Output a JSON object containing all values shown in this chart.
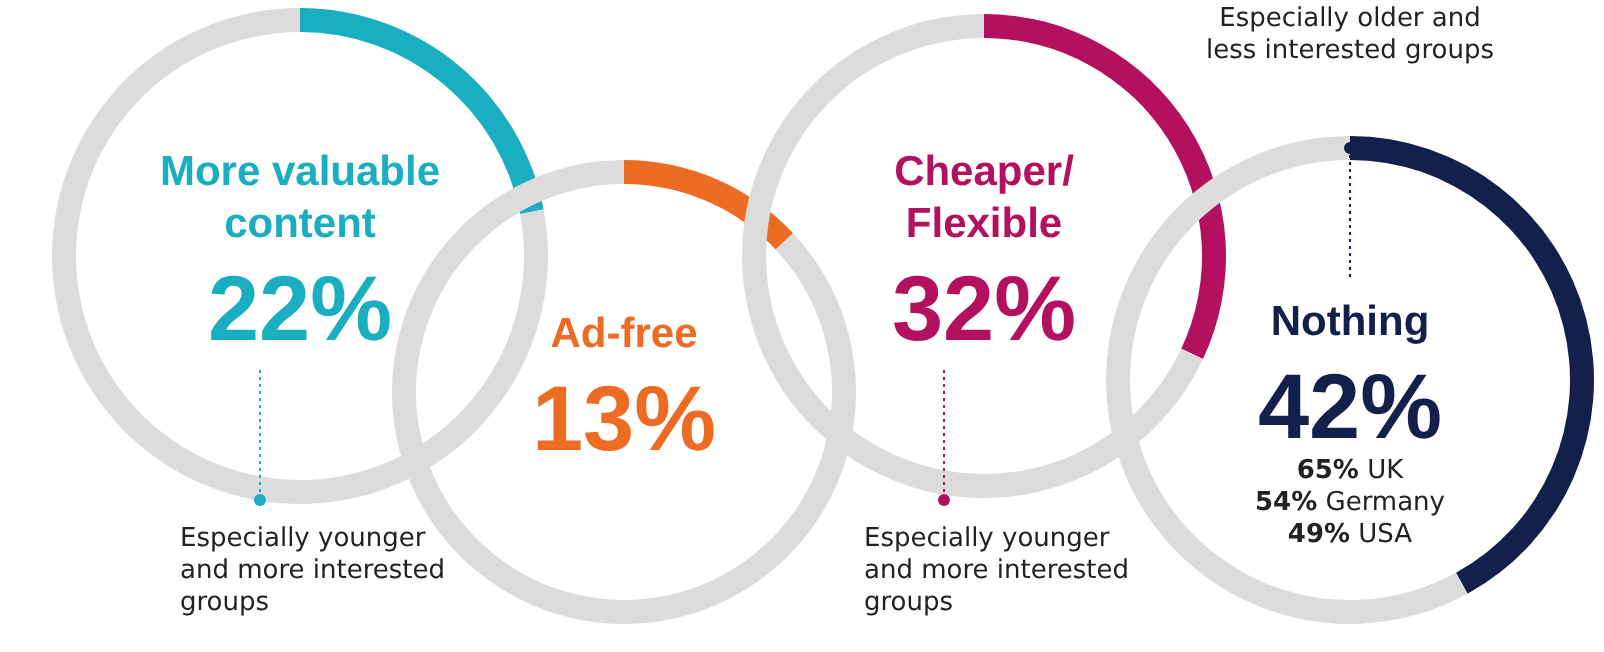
{
  "chart_data": [
    {
      "type": "donut",
      "categories": [
        "More valuable content",
        null
      ],
      "values": [
        22,
        78
      ],
      "colors": [
        "#19aec0",
        "#dcdcdc"
      ],
      "value_labels": [
        "22%",
        null
      ],
      "annotations": [
        "Especially younger and more interested groups"
      ]
    },
    {
      "type": "donut",
      "categories": [
        "Ad-free",
        null
      ],
      "values": [
        13,
        87
      ],
      "colors": [
        "#ec6c24",
        "#dcdcdc"
      ],
      "value_labels": [
        "13%",
        null
      ]
    },
    {
      "type": "donut",
      "categories": [
        "Cheaper/ Flexible",
        null
      ],
      "values": [
        32,
        68
      ],
      "colors": [
        "#b3115d",
        "#dcdcdc"
      ],
      "value_labels": [
        "32%",
        null
      ],
      "annotations": [
        "Especially younger and more interested groups"
      ]
    },
    {
      "type": "donut",
      "categories": [
        "Nothing",
        null
      ],
      "values": [
        42,
        58
      ],
      "colors": [
        "#13204c",
        "#dcdcdc"
      ],
      "value_labels": [
        "42%",
        null
      ],
      "annotations": [
        "Especially older and less interested groups",
        "65% UK",
        "54% Germany",
        "49% USA"
      ]
    }
  ]
}
